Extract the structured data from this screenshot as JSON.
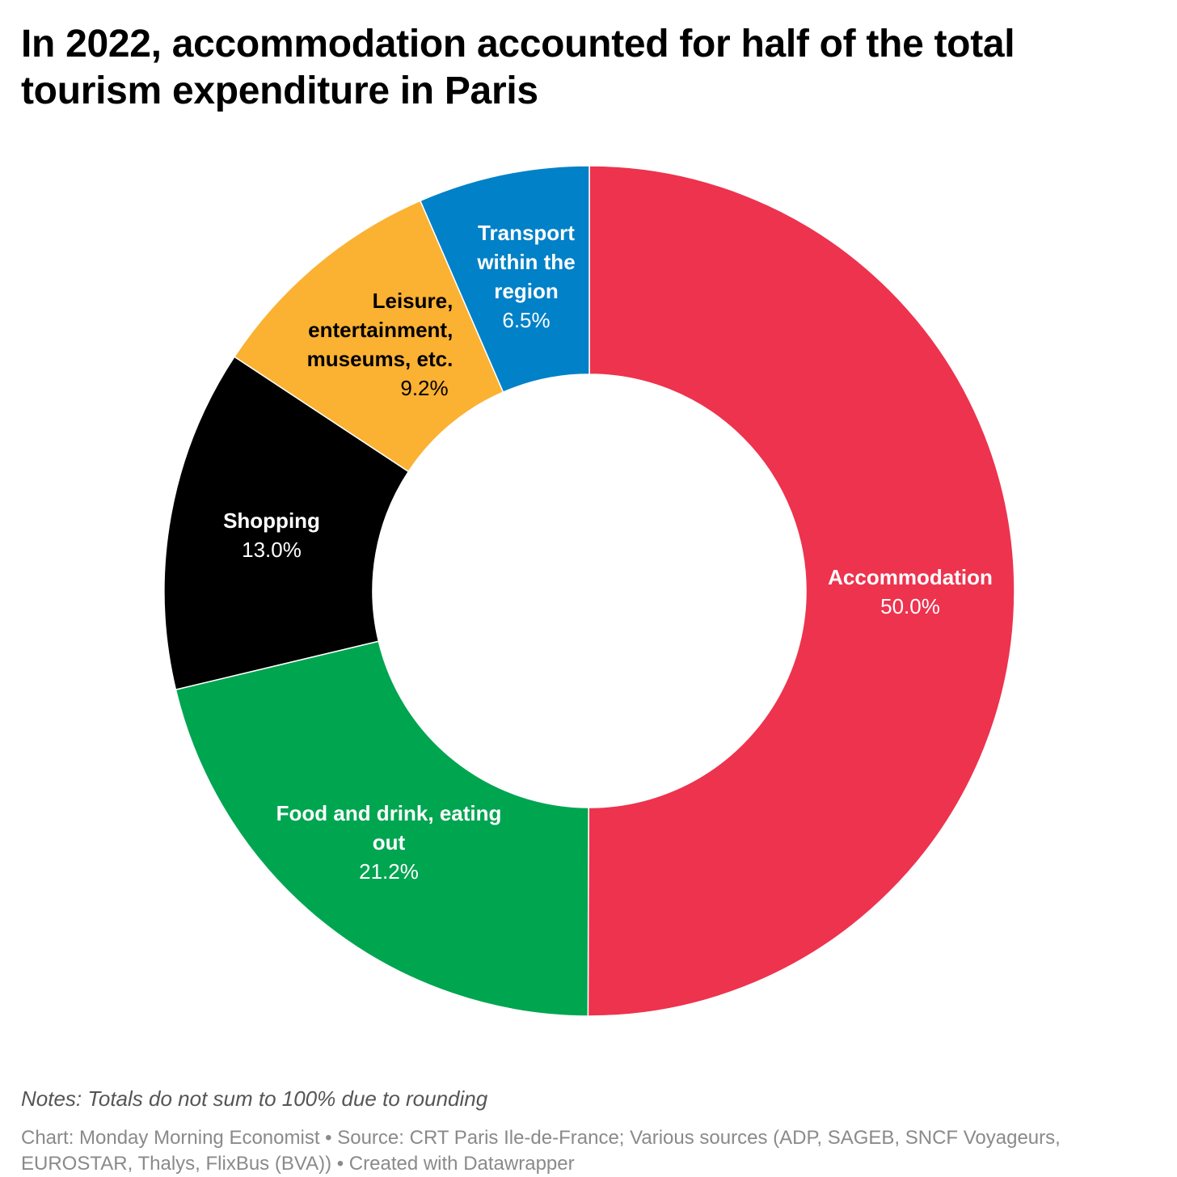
{
  "title": "In 2022, accommodation accounted for half of the total tourism expenditure in Paris",
  "notes": "Notes: Totals do not sum to 100% due to rounding",
  "footer": "Chart: Monday Morning Economist • Source: CRT Paris Ile-de-France; Various sources (ADP, SAGEB, SNCF Voyageurs, EUROSTAR, Thalys, FlixBus (BVA)) • Created with Datawrapper",
  "chart_data": {
    "type": "pie",
    "variant": "donut",
    "title": "In 2022, accommodation accounted for half of the total tourism expenditure in Paris",
    "slices": [
      {
        "label": "Accommodation",
        "value": 50.0,
        "value_label": "50.0%",
        "color": "#ED334E",
        "label_color": "#ffffff"
      },
      {
        "label": "Food and drink, eating out",
        "value": 21.2,
        "value_label": "21.2%",
        "color": "#00A550",
        "label_color": "#ffffff"
      },
      {
        "label": "Shopping",
        "value": 13.0,
        "value_label": "13.0%",
        "color": "#000000",
        "label_color": "#ffffff"
      },
      {
        "label": "Leisure, entertainment, museums, etc.",
        "value": 9.2,
        "value_label": "9.2%",
        "color": "#FBB132",
        "label_color": "#000000"
      },
      {
        "label": "Transport within the region",
        "value": 6.5,
        "value_label": "6.5%",
        "color": "#0081C8",
        "label_color": "#ffffff"
      }
    ],
    "legend": "none"
  }
}
